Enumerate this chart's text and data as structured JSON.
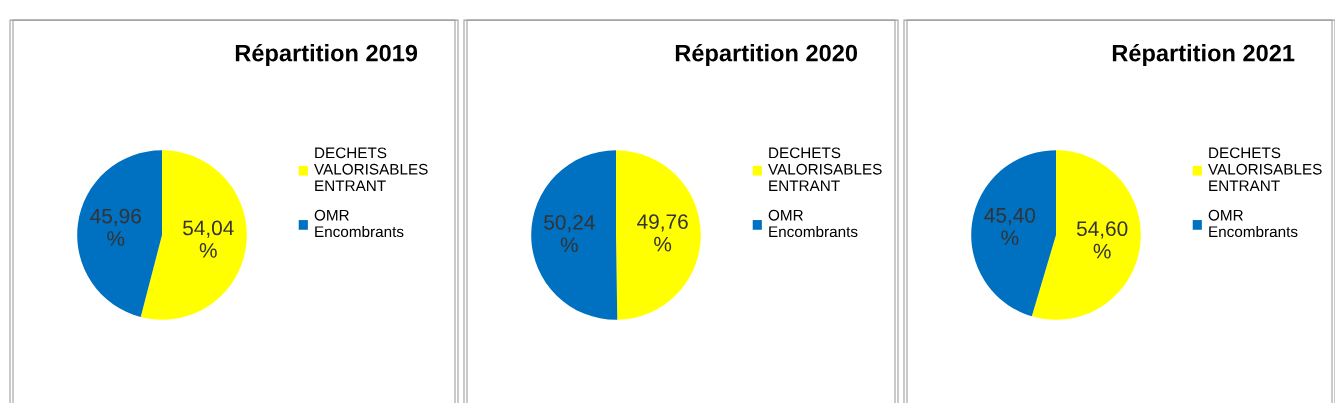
{
  "chart_data": [
    {
      "type": "pie",
      "title": "Répartition 2019",
      "categories": [
        "DECHETS VALORISABLES ENTRANT",
        "OMR Encombrants"
      ],
      "values": [
        54.04,
        45.96
      ],
      "colors": [
        "#ffff00",
        "#0070c0"
      ],
      "value_labels": [
        "54,04 %",
        "45,96 %"
      ],
      "legend": "right"
    },
    {
      "type": "pie",
      "title": "Répartition 2020",
      "categories": [
        "DECHETS VALORISABLES ENTRANT",
        "OMR Encombrants"
      ],
      "values": [
        49.76,
        50.24
      ],
      "colors": [
        "#ffff00",
        "#0070c0"
      ],
      "value_labels": [
        "49,76 %",
        "50,24 %"
      ],
      "legend": "right"
    },
    {
      "type": "pie",
      "title": "Répartition 2021",
      "categories": [
        "DECHETS VALORISABLES ENTRANT",
        "OMR Encombrants"
      ],
      "values": [
        54.6,
        45.4
      ],
      "colors": [
        "#ffff00",
        "#0070c0"
      ],
      "value_labels": [
        "54,60 %",
        "45,40 %"
      ],
      "legend": "right"
    }
  ]
}
